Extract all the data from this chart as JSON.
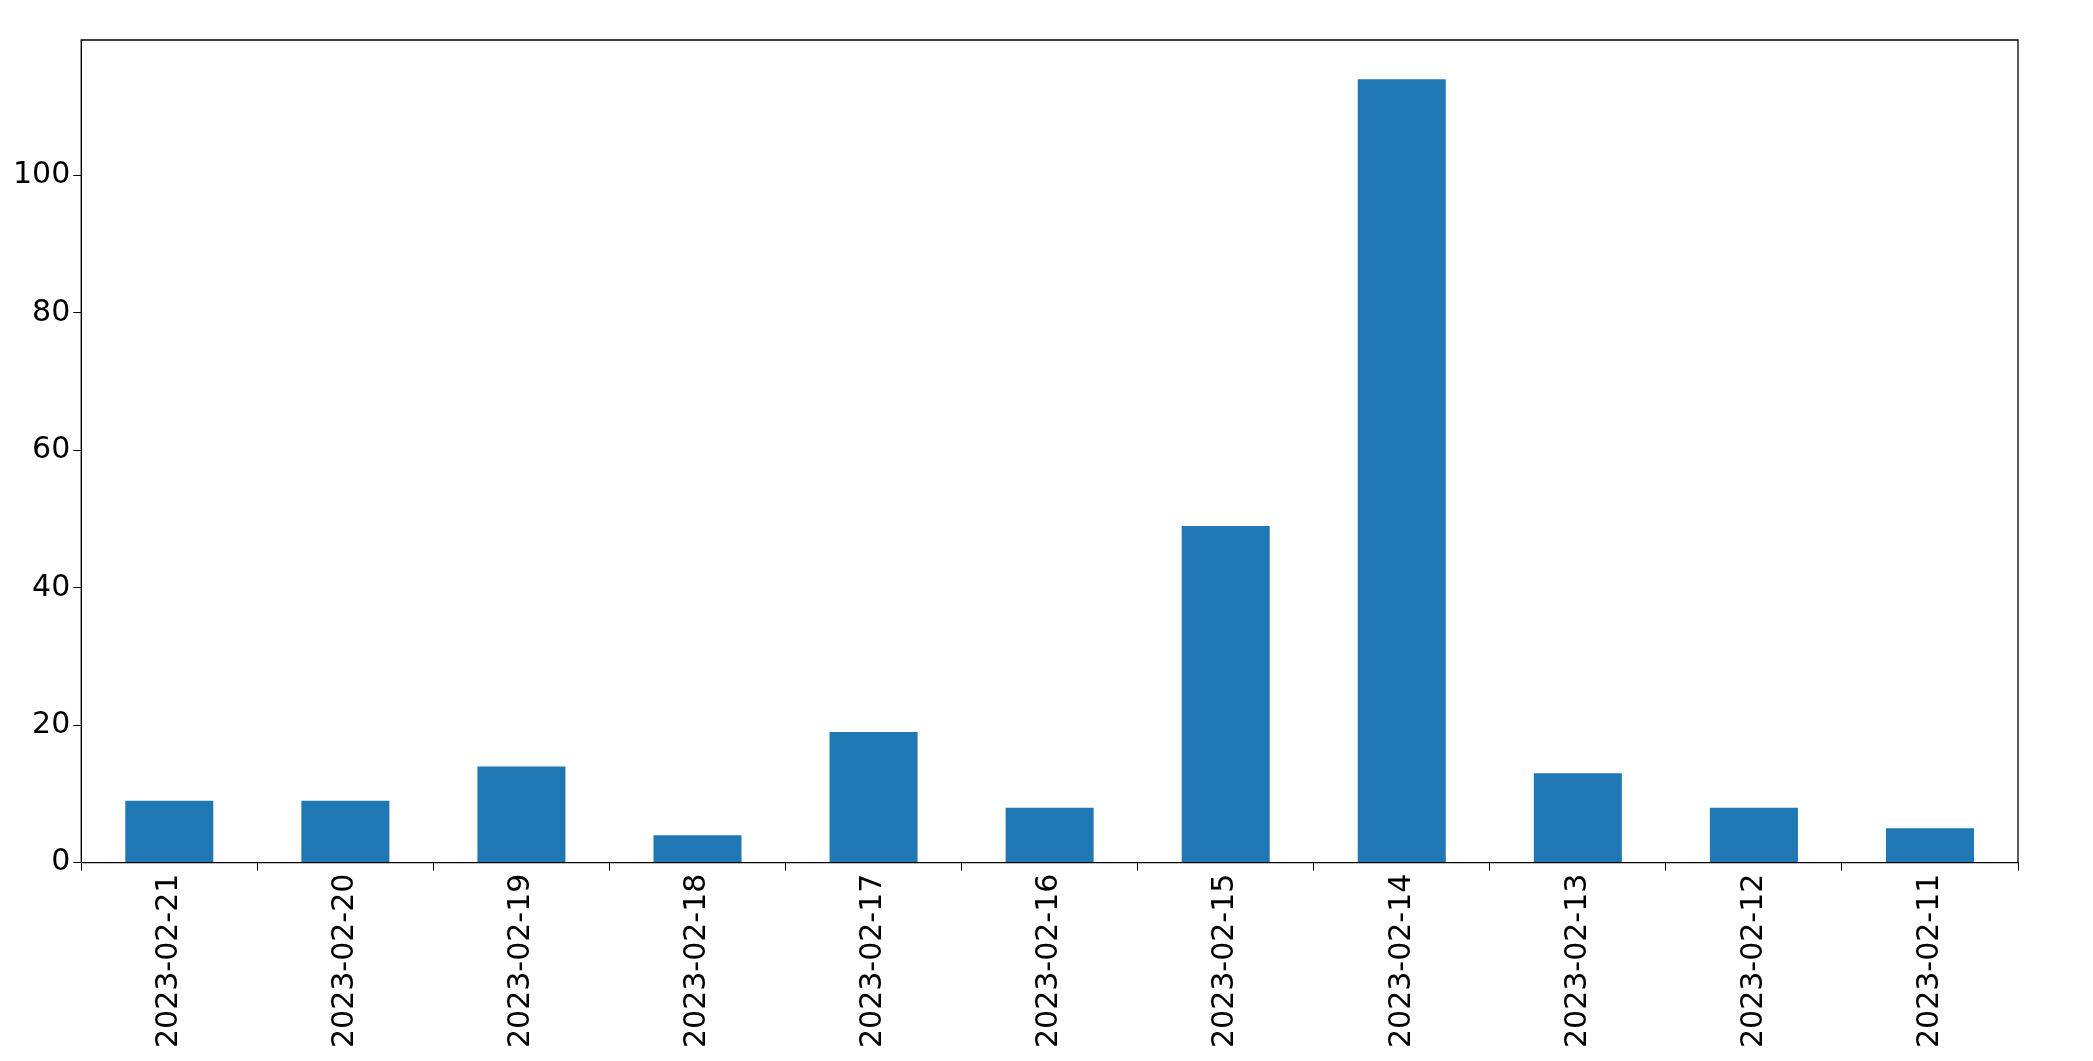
{
  "chart_data": {
    "type": "bar",
    "categories": [
      "2023-02-21",
      "2023-02-20",
      "2023-02-19",
      "2023-02-18",
      "2023-02-17",
      "2023-02-16",
      "2023-02-15",
      "2023-02-14",
      "2023-02-13",
      "2023-02-12",
      "2023-02-11"
    ],
    "values": [
      9,
      9,
      14,
      4,
      19,
      8,
      49,
      114,
      13,
      8,
      5
    ],
    "color": "#1f77b4",
    "ylim": [
      0,
      119.7
    ],
    "yticks": [
      0,
      20,
      40,
      60,
      80,
      100
    ]
  }
}
